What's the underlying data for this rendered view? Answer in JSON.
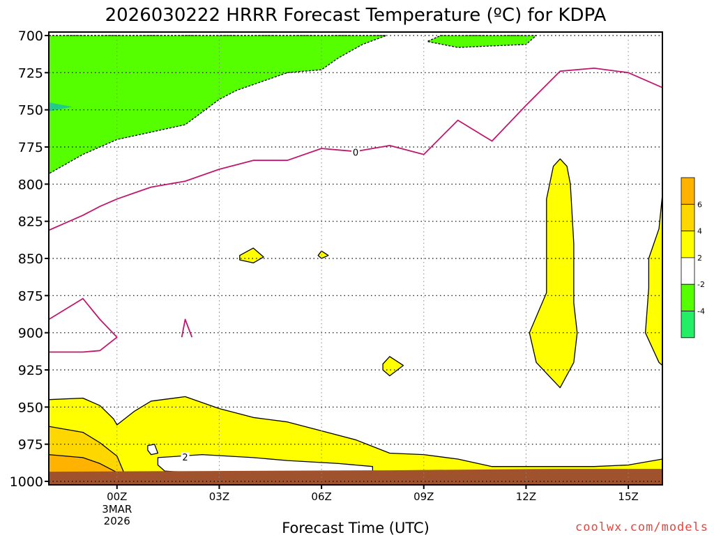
{
  "chart_data": {
    "type": "heatmap",
    "title": "2026030222 HRRR Forecast Temperature (ºC) for KDPA",
    "xlabel": "Forecast Time (UTC)",
    "ylabel": "",
    "watermark": "coolwx.com/models",
    "x_unit": "hours from 00Z 3 Mar 2026",
    "xlim": [
      -2,
      16
    ],
    "ylim": [
      1000,
      700
    ],
    "x_ticks": [
      {
        "x": 0,
        "label": "00Z",
        "sub": [
          "3MAR",
          "2026"
        ]
      },
      {
        "x": 3,
        "label": "03Z"
      },
      {
        "x": 6,
        "label": "06Z"
      },
      {
        "x": 9,
        "label": "09Z"
      },
      {
        "x": 12,
        "label": "12Z"
      },
      {
        "x": 15,
        "label": "15Z"
      }
    ],
    "y_ticks": [
      700,
      725,
      750,
      775,
      800,
      825,
      850,
      875,
      900,
      925,
      950,
      975,
      1000
    ],
    "grid": true,
    "colorbar": {
      "ticks": [
        "6",
        "4",
        "2",
        "-2",
        "-4"
      ],
      "bins": [
        {
          "range": "6 to 8",
          "color": "#FFB300"
        },
        {
          "range": "4 to 6",
          "color": "#FFD700"
        },
        {
          "range": "2 to 4",
          "color": "#FFFF00"
        },
        {
          "range": "-2 to 2",
          "color": "#FFFFFF"
        },
        {
          "range": "-4 to -2",
          "color": "#55FF00"
        },
        {
          "range": "-6 to -4",
          "color": "#22EE66"
        }
      ]
    },
    "colors": {
      "ground": "#A0522D",
      "freezing_line": "#C0176E",
      "cold_fill": "#55FF00",
      "coldest_fill": "#22CC88",
      "warm_fill": "#FFFF00",
      "warmer_fill": "#FFD700",
      "warmest_fill": "#FFB300"
    },
    "contour_labels": [
      {
        "text": "0",
        "x": 7.0,
        "p": 779
      },
      {
        "text": "2",
        "x": 2.0,
        "p": 984
      }
    ],
    "regions": [
      {
        "name": "cold-region",
        "class": "-4 to -2",
        "fill": "#55FF00",
        "stroke": "#000000",
        "dash": true,
        "closed": true,
        "points": [
          [
            -2,
            700
          ],
          [
            7.9,
            700
          ],
          [
            7.2,
            706
          ],
          [
            6.5,
            715
          ],
          [
            6.0,
            723
          ],
          [
            5.0,
            725
          ],
          [
            3.5,
            737
          ],
          [
            3.0,
            743
          ],
          [
            2.0,
            760
          ],
          [
            0.0,
            770
          ],
          [
            -1.0,
            780
          ],
          [
            -2.0,
            793
          ]
        ]
      },
      {
        "name": "cold-region-top-right",
        "class": "-4 to -2",
        "fill": "#55FF00",
        "stroke": "#000000",
        "dash": true,
        "closed": true,
        "points": [
          [
            9.5,
            700
          ],
          [
            12.3,
            700
          ],
          [
            12.0,
            706
          ],
          [
            11.0,
            707
          ],
          [
            10.0,
            708
          ],
          [
            9.1,
            704
          ]
        ]
      },
      {
        "name": "coldest-region",
        "class": "-6 to -4",
        "fill": "#22CC88",
        "stroke": "none",
        "closed": true,
        "points": [
          [
            -2,
            745
          ],
          [
            -1.3,
            748
          ],
          [
            -2,
            751
          ]
        ]
      },
      {
        "name": "warm-lower-layer",
        "class": "2 to 4",
        "fill": "#FFFF00",
        "stroke": "#000000",
        "closed": true,
        "points": [
          [
            -2,
            945
          ],
          [
            -1.0,
            944
          ],
          [
            -0.5,
            949
          ],
          [
            -0.1,
            958
          ],
          [
            0.0,
            962
          ],
          [
            0.5,
            953
          ],
          [
            1.0,
            946
          ],
          [
            2.0,
            943
          ],
          [
            3.0,
            951
          ],
          [
            4.0,
            957
          ],
          [
            5.0,
            960
          ],
          [
            6.0,
            966
          ],
          [
            7.0,
            972
          ],
          [
            8.0,
            981
          ],
          [
            9.0,
            982
          ],
          [
            10.0,
            985
          ],
          [
            11.0,
            990
          ],
          [
            12.0,
            990
          ],
          [
            13.0,
            990
          ],
          [
            14.0,
            990
          ],
          [
            15.0,
            989
          ],
          [
            16.0,
            985
          ],
          [
            16.0,
            994
          ],
          [
            -2,
            994
          ]
        ]
      },
      {
        "name": "warmer-lower-layer",
        "class": "4 to 6",
        "fill": "#FFD700",
        "stroke": "#000000",
        "closed": true,
        "points": [
          [
            -2,
            963
          ],
          [
            -1.0,
            967
          ],
          [
            -0.5,
            974
          ],
          [
            0.0,
            983
          ],
          [
            0.2,
            994
          ],
          [
            -2,
            994
          ]
        ]
      },
      {
        "name": "warmest-lower-layer",
        "class": "6 to 8",
        "fill": "#FFB300",
        "stroke": "#000000",
        "closed": true,
        "points": [
          [
            -2,
            982
          ],
          [
            -1.0,
            984
          ],
          [
            -0.5,
            988
          ],
          [
            0.0,
            994
          ],
          [
            -2,
            994
          ]
        ]
      },
      {
        "name": "white-pocket-near-2",
        "class": "-2 to 2",
        "fill": "#FFFFFF",
        "stroke": "#000000",
        "closed": true,
        "points": [
          [
            1.2,
            984
          ],
          [
            2.5,
            982
          ],
          [
            4.0,
            984
          ],
          [
            5.0,
            986
          ],
          [
            6.5,
            988
          ],
          [
            7.5,
            990
          ],
          [
            7.5,
            994
          ],
          [
            5.0,
            994
          ],
          [
            2.0,
            994
          ],
          [
            1.4,
            993
          ],
          [
            1.2,
            989
          ]
        ]
      },
      {
        "name": "white-blob-small",
        "class": "-2 to 2",
        "fill": "#FFFFFF",
        "stroke": "#000000",
        "closed": true,
        "points": [
          [
            0.9,
            976
          ],
          [
            1.1,
            975
          ],
          [
            1.2,
            981
          ],
          [
            1.0,
            982
          ],
          [
            0.9,
            979
          ]
        ]
      },
      {
        "name": "warm-blob-850-04z",
        "class": "2 to 4",
        "fill": "#FFFF00",
        "stroke": "#000000",
        "closed": true,
        "points": [
          [
            3.6,
            848
          ],
          [
            4.0,
            843
          ],
          [
            4.3,
            849
          ],
          [
            4.0,
            853
          ],
          [
            3.6,
            851
          ]
        ]
      },
      {
        "name": "warm-blob-850-06z",
        "class": "2 to 4",
        "fill": "#FFFF00",
        "stroke": "#000000",
        "closed": true,
        "points": [
          [
            5.9,
            848
          ],
          [
            6.0,
            845
          ],
          [
            6.2,
            848
          ],
          [
            6.0,
            850
          ]
        ]
      },
      {
        "name": "warm-blob-925-08z",
        "class": "2 to 4",
        "fill": "#FFFF00",
        "stroke": "#000000",
        "closed": true,
        "points": [
          [
            7.8,
            921
          ],
          [
            8.0,
            916
          ],
          [
            8.4,
            922
          ],
          [
            8.0,
            929
          ],
          [
            7.8,
            925
          ]
        ]
      },
      {
        "name": "warm-column-13z",
        "class": "2 to 4",
        "fill": "#FFFF00",
        "stroke": "#000000",
        "closed": true,
        "points": [
          [
            13.0,
            783
          ],
          [
            13.2,
            788
          ],
          [
            13.3,
            800
          ],
          [
            13.4,
            840
          ],
          [
            13.4,
            880
          ],
          [
            13.5,
            900
          ],
          [
            13.4,
            920
          ],
          [
            13.0,
            937
          ],
          [
            12.3,
            920
          ],
          [
            12.1,
            900
          ],
          [
            12.6,
            873
          ],
          [
            12.6,
            850
          ],
          [
            12.6,
            830
          ],
          [
            12.6,
            810
          ],
          [
            12.8,
            788
          ]
        ]
      },
      {
        "name": "warm-right-edge",
        "class": "2 to 4",
        "fill": "#FFFF00",
        "stroke": "#000000",
        "closed": true,
        "points": [
          [
            16.0,
            807
          ],
          [
            15.9,
            830
          ],
          [
            15.6,
            850
          ],
          [
            15.6,
            870
          ],
          [
            15.5,
            900
          ],
          [
            15.9,
            920
          ],
          [
            16.0,
            922
          ]
        ]
      }
    ],
    "freezing_lines": [
      {
        "name": "freezing-line-main",
        "label": "0",
        "points": [
          [
            -2,
            831
          ],
          [
            -1.5,
            826
          ],
          [
            -1.0,
            821
          ],
          [
            -0.5,
            815
          ],
          [
            0.0,
            810
          ],
          [
            0.5,
            806
          ],
          [
            1.0,
            802
          ],
          [
            2.0,
            798
          ],
          [
            3.0,
            790
          ],
          [
            4.0,
            784
          ],
          [
            5.0,
            784
          ],
          [
            6.0,
            776
          ],
          [
            6.5,
            777
          ],
          [
            7.0,
            778
          ],
          [
            8.0,
            774
          ],
          [
            9.0,
            780
          ],
          [
            10.0,
            757
          ],
          [
            11.0,
            771
          ],
          [
            12.0,
            747
          ],
          [
            13.0,
            724
          ],
          [
            14.0,
            722
          ],
          [
            15.0,
            725
          ],
          [
            16.0,
            735
          ]
        ]
      },
      {
        "name": "freezing-line-loop",
        "label": "",
        "points": [
          [
            -2,
            891
          ],
          [
            -1.0,
            877
          ],
          [
            -0.5,
            891
          ],
          [
            0.0,
            903
          ],
          [
            -0.5,
            912
          ],
          [
            -1.0,
            913
          ],
          [
            -2.0,
            913
          ]
        ]
      },
      {
        "name": "freezing-line-spike",
        "label": "",
        "points": [
          [
            1.9,
            903
          ],
          [
            2.0,
            891
          ],
          [
            2.2,
            903
          ]
        ]
      }
    ],
    "ground": {
      "p_top": 993,
      "p_bottom": 1000
    }
  }
}
